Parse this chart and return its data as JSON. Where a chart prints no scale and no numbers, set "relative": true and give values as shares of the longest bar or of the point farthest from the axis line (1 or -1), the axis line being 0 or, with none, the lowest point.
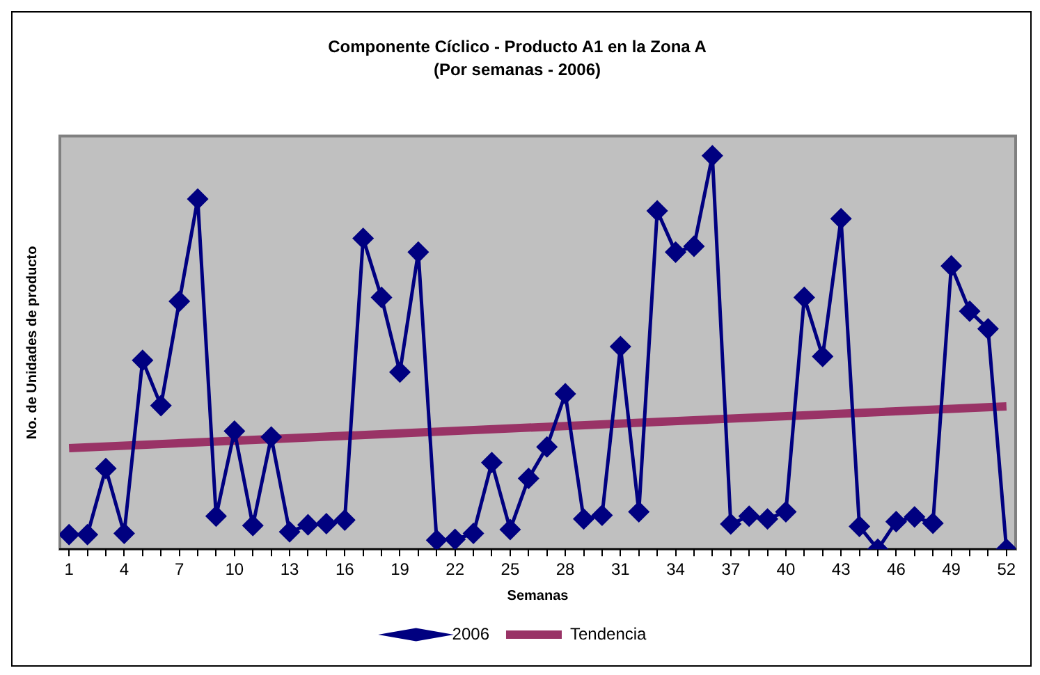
{
  "chart_data": {
    "type": "line",
    "title": "Componente Cíclico - Producto A1 en la Zona A",
    "subtitle": "(Por semanas - 2006)",
    "xlabel": "Semanas",
    "ylabel": "No. de Unidades de producto",
    "relative": true,
    "x": [
      1,
      2,
      3,
      4,
      5,
      6,
      7,
      8,
      9,
      10,
      11,
      12,
      13,
      14,
      15,
      16,
      17,
      18,
      19,
      20,
      21,
      22,
      23,
      24,
      25,
      26,
      27,
      28,
      29,
      30,
      31,
      32,
      33,
      34,
      35,
      36,
      37,
      38,
      39,
      40,
      41,
      42,
      43,
      44,
      45,
      46,
      47,
      48,
      49,
      50,
      51,
      52
    ],
    "xlim": [
      0.5,
      52.5
    ],
    "xticks": [
      1,
      {
        "value": 2,
        "label": null
      },
      {
        "value": 3,
        "label": null
      },
      4,
      {
        "value": 5,
        "label": null
      },
      {
        "value": 6,
        "label": null
      },
      7,
      {
        "value": 8,
        "label": null
      },
      {
        "value": 9,
        "label": null
      },
      10,
      {
        "value": 11,
        "label": null
      },
      {
        "value": 12,
        "label": null
      },
      13,
      {
        "value": 14,
        "label": null
      },
      {
        "value": 15,
        "label": null
      },
      16,
      {
        "value": 17,
        "label": null
      },
      {
        "value": 18,
        "label": null
      },
      19,
      {
        "value": 20,
        "label": null
      },
      {
        "value": 21,
        "label": null
      },
      22,
      {
        "value": 23,
        "label": null
      },
      {
        "value": 24,
        "label": null
      },
      25,
      {
        "value": 26,
        "label": null
      },
      {
        "value": 27,
        "label": null
      },
      28,
      {
        "value": 29,
        "label": null
      },
      {
        "value": 30,
        "label": null
      },
      31,
      {
        "value": 32,
        "label": null
      },
      {
        "value": 33,
        "label": null
      },
      34,
      {
        "value": 35,
        "label": null
      },
      {
        "value": 36,
        "label": null
      },
      37,
      {
        "value": 38,
        "label": null
      },
      {
        "value": 39,
        "label": null
      },
      40,
      {
        "value": 41,
        "label": null
      },
      {
        "value": 42,
        "label": null
      },
      43,
      {
        "value": 44,
        "label": null
      },
      {
        "value": 45,
        "label": null
      },
      46,
      {
        "value": 47,
        "label": null
      },
      {
        "value": 48,
        "label": null
      },
      49,
      {
        "value": 50,
        "label": null
      },
      {
        "value": 51,
        "label": null
      },
      52
    ],
    "series": [
      {
        "name": "2006",
        "color": "#000080",
        "marker": "diamond",
        "values": [
          0.037,
          0.037,
          0.205,
          0.04,
          0.48,
          0.365,
          0.63,
          0.89,
          0.084,
          0.3,
          0.06,
          0.285,
          0.044,
          0.062,
          0.065,
          0.074,
          0.79,
          0.64,
          0.45,
          0.755,
          0.023,
          0.025,
          0.04,
          0.22,
          0.05,
          0.18,
          0.26,
          0.395,
          0.077,
          0.086,
          0.515,
          0.095,
          0.86,
          0.755,
          0.77,
          1,
          0.064,
          0.084,
          0.077,
          0.095,
          0.64,
          0.49,
          0.84,
          0.058,
          0,
          0.07,
          0.082,
          0.066,
          0.72,
          0.605,
          0.56,
          0
        ]
      },
      {
        "name": "Tendencia",
        "color": "#993366",
        "marker": "none",
        "x": [
          1,
          52
        ],
        "values": [
          0.257,
          0.363
        ]
      }
    ],
    "grid": false,
    "legend": "bottom"
  }
}
